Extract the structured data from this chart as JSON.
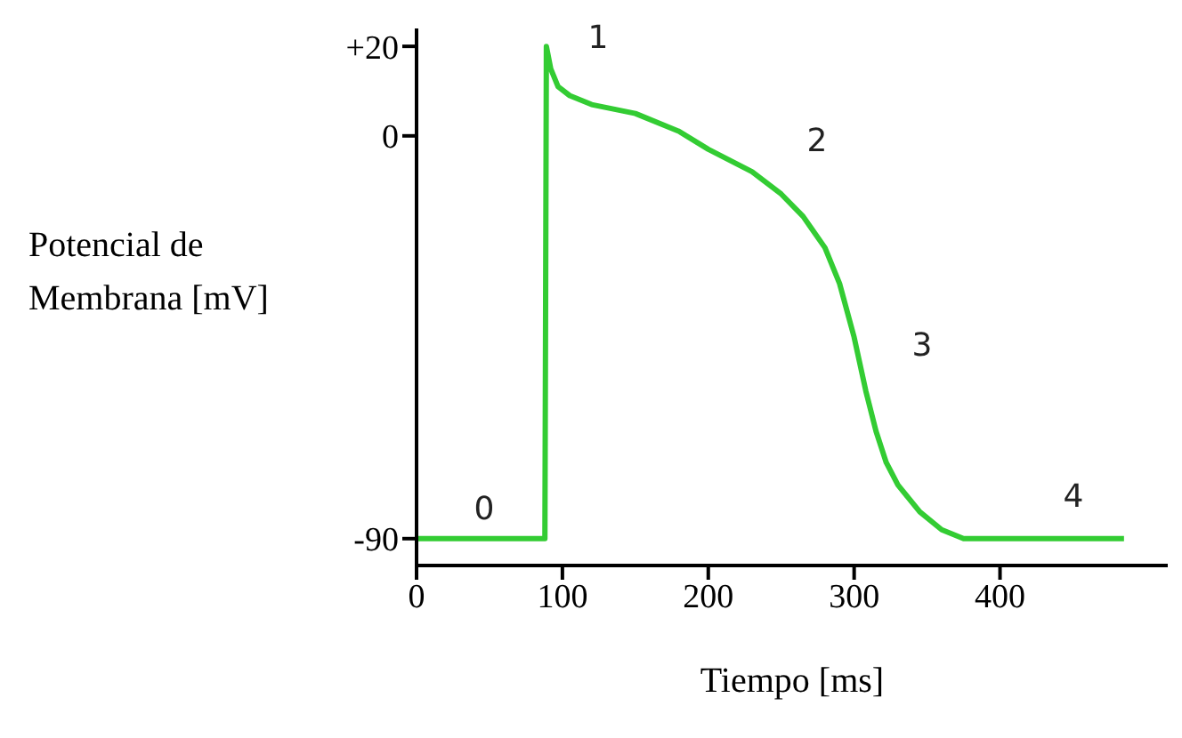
{
  "chart_data": {
    "type": "line",
    "xlabel": "Tiempo [ms]",
    "ylabel": "Potencial de Membrana [mV]",
    "x": [
      0,
      88,
      89,
      92,
      97,
      105,
      120,
      150,
      180,
      200,
      230,
      250,
      265,
      280,
      290,
      300,
      308,
      315,
      322,
      330,
      345,
      360,
      375,
      390,
      420,
      450,
      485
    ],
    "series": [
      {
        "color": "#33cc33",
        "values": [
          -90,
          -90,
          20,
          15,
          11,
          9,
          7,
          5,
          1,
          -3,
          -8,
          -13,
          -18,
          -25,
          -33,
          -45,
          -57,
          -66,
          -73,
          -78,
          -84,
          -88,
          -90,
          -90,
          -90,
          -90,
          -90
        ]
      }
    ],
    "xlim": [
      0,
      515
    ],
    "ylim": [
      -96,
      24
    ],
    "xticks": [
      0,
      100,
      200,
      300,
      400
    ],
    "yticks": [
      {
        "value": 20,
        "label": "+20"
      },
      0,
      {
        "value": -90,
        "label": "-90"
      }
    ],
    "grid": false,
    "legend": false,
    "marker": "none",
    "line_style": "solid",
    "annotations": [
      "0",
      "1",
      "2",
      "3",
      "4"
    ]
  }
}
